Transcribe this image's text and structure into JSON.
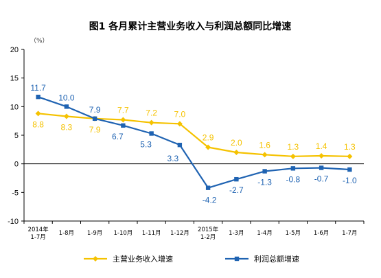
{
  "chart_data": {
    "type": "line",
    "title": "图1  各月累计主营业务收入与利润总额同比增速",
    "unit_label": "（%）",
    "categories": [
      [
        "2014年",
        "1-7月"
      ],
      [
        "1-8月"
      ],
      [
        "1-9月"
      ],
      [
        "1-10月"
      ],
      [
        "1-11月"
      ],
      [
        "1-12月"
      ],
      [
        "2015年",
        "1-2月"
      ],
      [
        "1-3月"
      ],
      [
        "1-4月"
      ],
      [
        "1-5月"
      ],
      [
        "1-6月"
      ],
      [
        "1-7月"
      ]
    ],
    "ylim": [
      -10,
      20
    ],
    "yticks": [
      -10,
      -5,
      0,
      5,
      10,
      15,
      20
    ],
    "legend_position": "bottom",
    "series": [
      {
        "name": "主营业务收入增速",
        "color": "#F5C200",
        "marker": "diamond",
        "values": [
          8.8,
          8.3,
          7.9,
          7.7,
          7.2,
          7.0,
          2.9,
          2.0,
          1.6,
          1.3,
          1.4,
          1.3
        ],
        "labels": [
          "8.8",
          "8.3",
          "7.9",
          "7.7",
          "7.2",
          "7.0",
          "2.9",
          "2.0",
          "1.6",
          "1.3",
          "1.4",
          "1.3"
        ]
      },
      {
        "name": "利润总额增速",
        "color": "#1F63B2",
        "marker": "square",
        "values": [
          11.7,
          10.0,
          7.9,
          6.7,
          5.3,
          3.3,
          -4.2,
          -2.7,
          -1.3,
          -0.8,
          -0.7,
          -1.0
        ],
        "labels": [
          "11.7",
          "10.0",
          "7.9",
          "6.7",
          "5.3",
          "3.3",
          "-4.2",
          "-2.7",
          "-1.3",
          "-0.8",
          "-0.7",
          "-1.0"
        ]
      }
    ]
  }
}
